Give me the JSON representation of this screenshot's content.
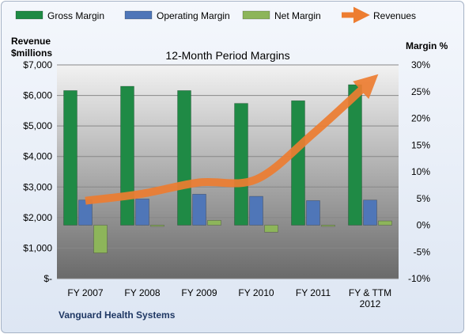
{
  "chart_data": {
    "type": "bar",
    "title": "12-Month Period Margins",
    "footer": "Vanguard Health Systems",
    "categories": [
      "FY 2007",
      "FY 2008",
      "FY 2009",
      "FY 2010",
      "FY 2011",
      "FY & TTM\n2012"
    ],
    "left_axis": {
      "title_line1": "Revenue",
      "title_line2": "$millions",
      "range": [
        0,
        7000
      ],
      "ticks": [
        0,
        1000,
        2000,
        3000,
        4000,
        5000,
        6000,
        7000
      ],
      "tick_labels": [
        "$-",
        "$1,000",
        "$2,000",
        "$3,000",
        "$4,000",
        "$5,000",
        "$6,000",
        "$7,000"
      ]
    },
    "right_axis": {
      "title": "Margin %",
      "range": [
        -10,
        30
      ],
      "ticks": [
        -10,
        -5,
        0,
        5,
        10,
        15,
        20,
        25,
        30
      ],
      "tick_labels": [
        "-10%",
        "-5%",
        "0%",
        "5%",
        "10%",
        "15%",
        "20%",
        "25%",
        "30%"
      ]
    },
    "series": [
      {
        "name": "Gross Margin",
        "kind": "bar",
        "axis": "right",
        "color": "#1f8a45",
        "values": [
          25.2,
          26.0,
          25.2,
          22.8,
          23.3,
          26.3
        ]
      },
      {
        "name": "Operating Margin",
        "kind": "bar",
        "axis": "right",
        "color": "#4f76b8",
        "values": [
          4.7,
          4.9,
          5.8,
          5.4,
          4.6,
          4.7
        ]
      },
      {
        "name": "Net Margin",
        "kind": "bar",
        "axis": "right",
        "color": "#8db55a",
        "values": [
          -5.2,
          -0.2,
          0.9,
          -1.3,
          -0.2,
          0.8
        ]
      },
      {
        "name": "Revenues",
        "kind": "line",
        "axis": "left",
        "color": "#ed7d31",
        "values": [
          2550,
          2780,
          3150,
          3250,
          4750,
          6450
        ]
      }
    ],
    "grid": true,
    "legend_position": "top"
  }
}
